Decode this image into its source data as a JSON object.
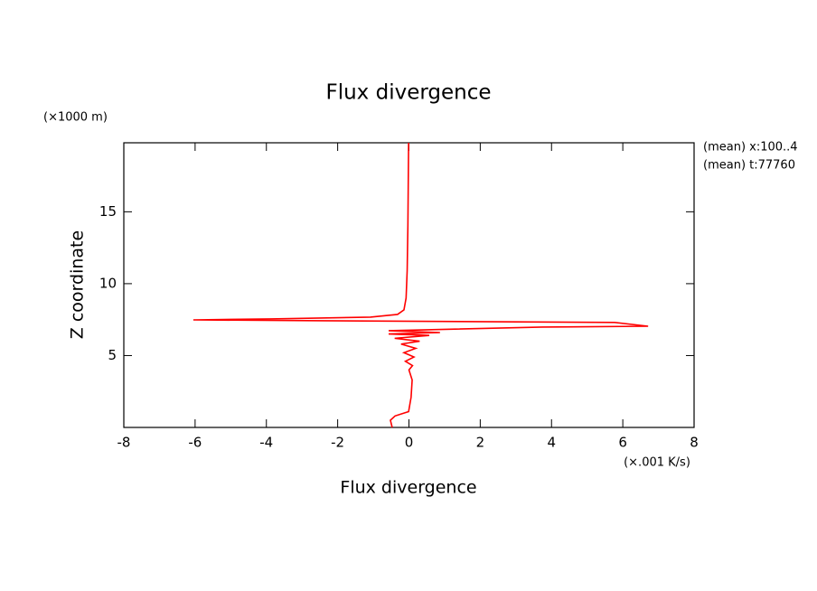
{
  "chart_data": {
    "type": "line",
    "title": "Flux divergence",
    "xlabel": "Flux divergence",
    "ylabel": "Z coordinate",
    "x_units": "(×.001 K/s)",
    "y_units": "(×1000 m)",
    "annotations": [
      "(mean) x:100..4",
      "(mean) t:77760"
    ],
    "color": "#ff0000",
    "x": [
      -0.47,
      -0.52,
      -0.39,
      -0.14,
      -0.01,
      0.06,
      0.09,
      0.0,
      0.1,
      -0.1,
      0.14,
      -0.14,
      0.19,
      -0.22,
      0.3,
      -0.4,
      0.57,
      -0.57,
      0.87,
      -0.57,
      3.74,
      6.71,
      5.77,
      -2.35,
      -6.05,
      -3.87,
      -1.08,
      -0.32,
      -0.14,
      -0.08,
      -0.05,
      -0.03,
      -0.01
    ],
    "values": [
      0.0,
      0.5,
      0.8,
      1.0,
      1.1,
      2.1,
      3.3,
      4.0,
      4.3,
      4.6,
      4.9,
      5.2,
      5.5,
      5.8,
      6.0,
      6.2,
      6.4,
      6.5,
      6.6,
      6.73,
      6.98,
      7.04,
      7.3,
      7.42,
      7.48,
      7.55,
      7.67,
      7.86,
      8.18,
      9.0,
      10.9,
      14.0,
      19.8
    ],
    "xlim": [
      -8,
      8
    ],
    "xticks": [
      -8,
      -6,
      -4,
      -2,
      0,
      2,
      4,
      6,
      8
    ],
    "ylim": [
      0,
      19.8
    ],
    "yticks": [
      5,
      10,
      15
    ]
  }
}
